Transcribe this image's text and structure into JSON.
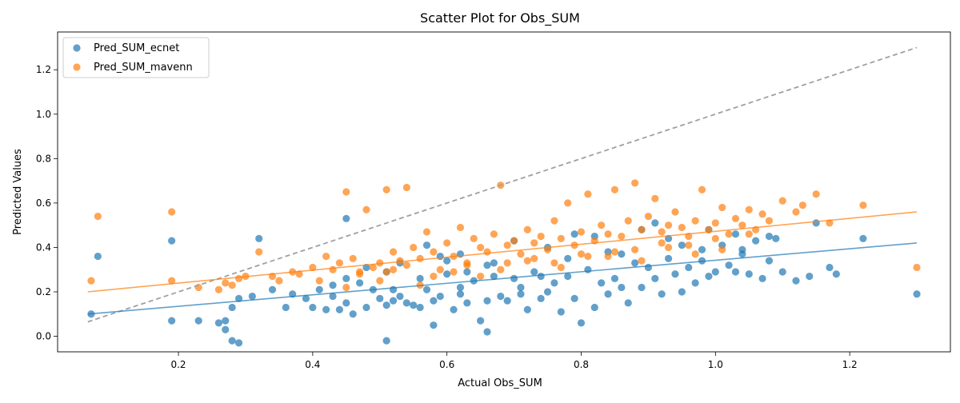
{
  "chart_data": {
    "type": "scatter",
    "title": "Scatter Plot for Obs_SUM",
    "xlabel": "Actual Obs_SUM",
    "ylabel": "Predicted Values",
    "xlim": [
      0.02,
      1.35
    ],
    "ylim": [
      -0.07,
      1.37
    ],
    "xticks": [
      0.2,
      0.4,
      0.6,
      0.8,
      1.0,
      1.2
    ],
    "yticks": [
      0.0,
      0.2,
      0.4,
      0.6,
      0.8,
      1.0,
      1.2
    ],
    "legend_position": "top-left",
    "series": [
      {
        "name": "Pred_SUM_ecnet",
        "color": "#1f77b4",
        "trend": {
          "x": [
            0.065,
            1.3
          ],
          "y": [
            0.1,
            0.42
          ]
        },
        "x": [
          0.07,
          0.08,
          0.19,
          0.19,
          0.23,
          0.26,
          0.27,
          0.27,
          0.28,
          0.28,
          0.29,
          0.29,
          0.31,
          0.32,
          0.34,
          0.36,
          0.37,
          0.39,
          0.4,
          0.41,
          0.42,
          0.43,
          0.44,
          0.45,
          0.45,
          0.46,
          0.47,
          0.48,
          0.49,
          0.5,
          0.51,
          0.51,
          0.52,
          0.53,
          0.54,
          0.55,
          0.56,
          0.57,
          0.58,
          0.58,
          0.59,
          0.6,
          0.61,
          0.62,
          0.62,
          0.63,
          0.64,
          0.65,
          0.66,
          0.66,
          0.67,
          0.68,
          0.69,
          0.7,
          0.71,
          0.72,
          0.73,
          0.74,
          0.75,
          0.76,
          0.77,
          0.78,
          0.79,
          0.8,
          0.81,
          0.82,
          0.83,
          0.84,
          0.85,
          0.86,
          0.87,
          0.88,
          0.89,
          0.9,
          0.91,
          0.92,
          0.93,
          0.94,
          0.95,
          0.96,
          0.97,
          0.98,
          0.99,
          1.0,
          1.01,
          1.02,
          1.03,
          1.04,
          1.05,
          1.06,
          1.07,
          1.08,
          1.09,
          1.1,
          1.12,
          1.14,
          1.15,
          1.17,
          1.18,
          1.22,
          1.3,
          0.45,
          0.51,
          0.53,
          0.57,
          0.6,
          0.62,
          0.66,
          0.7,
          0.74,
          0.79,
          0.84,
          0.89,
          0.93,
          0.98,
          1.03,
          0.43,
          0.48,
          0.52,
          0.56,
          0.59,
          0.63,
          0.67,
          0.71,
          0.75,
          0.78,
          0.82,
          0.86,
          0.91,
          0.95,
          0.99,
          1.04,
          1.08
        ],
        "y": [
          0.1,
          0.36,
          0.43,
          0.07,
          0.07,
          0.06,
          0.07,
          0.03,
          0.13,
          -0.02,
          0.17,
          -0.03,
          0.18,
          0.44,
          0.21,
          0.13,
          0.19,
          0.17,
          0.13,
          0.21,
          0.12,
          0.18,
          0.12,
          0.15,
          0.53,
          0.1,
          0.24,
          0.13,
          0.21,
          0.17,
          0.14,
          -0.02,
          0.16,
          0.18,
          0.15,
          0.14,
          0.13,
          0.21,
          0.05,
          0.16,
          0.18,
          0.28,
          0.12,
          0.19,
          0.22,
          0.15,
          0.25,
          0.07,
          0.16,
          0.02,
          0.27,
          0.18,
          0.16,
          0.26,
          0.19,
          0.12,
          0.29,
          0.17,
          0.2,
          0.24,
          0.11,
          0.27,
          0.17,
          0.06,
          0.3,
          0.13,
          0.24,
          0.19,
          0.26,
          0.22,
          0.15,
          0.33,
          0.22,
          0.31,
          0.26,
          0.19,
          0.35,
          0.28,
          0.2,
          0.31,
          0.24,
          0.34,
          0.27,
          0.29,
          0.41,
          0.32,
          0.29,
          0.37,
          0.28,
          0.43,
          0.26,
          0.34,
          0.44,
          0.29,
          0.25,
          0.27,
          0.51,
          0.31,
          0.28,
          0.44,
          0.19,
          0.26,
          0.29,
          0.33,
          0.41,
          0.34,
          0.37,
          0.32,
          0.43,
          0.27,
          0.46,
          0.38,
          0.48,
          0.44,
          0.39,
          0.46,
          0.23,
          0.31,
          0.21,
          0.26,
          0.36,
          0.29,
          0.33,
          0.22,
          0.4,
          0.35,
          0.45,
          0.37,
          0.51,
          0.41,
          0.48,
          0.39,
          0.45
        ]
      },
      {
        "name": "Pred_SUM_mavenn",
        "color": "#ff7f0e",
        "trend": {
          "x": [
            0.065,
            1.3
          ],
          "y": [
            0.2,
            0.56
          ]
        },
        "x": [
          0.07,
          0.08,
          0.19,
          0.19,
          0.23,
          0.26,
          0.27,
          0.28,
          0.29,
          0.3,
          0.32,
          0.34,
          0.35,
          0.37,
          0.38,
          0.4,
          0.41,
          0.42,
          0.43,
          0.44,
          0.45,
          0.45,
          0.46,
          0.47,
          0.48,
          0.49,
          0.5,
          0.51,
          0.51,
          0.52,
          0.53,
          0.54,
          0.54,
          0.55,
          0.56,
          0.57,
          0.58,
          0.59,
          0.6,
          0.61,
          0.62,
          0.63,
          0.64,
          0.65,
          0.66,
          0.67,
          0.68,
          0.69,
          0.7,
          0.71,
          0.72,
          0.73,
          0.74,
          0.75,
          0.76,
          0.77,
          0.78,
          0.79,
          0.8,
          0.81,
          0.82,
          0.83,
          0.84,
          0.85,
          0.86,
          0.87,
          0.88,
          0.89,
          0.9,
          0.91,
          0.92,
          0.93,
          0.94,
          0.95,
          0.96,
          0.97,
          0.98,
          0.99,
          1.0,
          1.01,
          1.02,
          1.03,
          1.04,
          1.05,
          1.06,
          1.07,
          1.08,
          1.1,
          1.12,
          1.13,
          1.15,
          1.17,
          1.22,
          1.3,
          0.5,
          0.56,
          0.61,
          0.65,
          0.69,
          0.73,
          0.77,
          0.81,
          0.85,
          0.89,
          0.93,
          0.97,
          1.01,
          0.47,
          0.52,
          0.58,
          0.63,
          0.68,
          0.72,
          0.76,
          0.8,
          0.84,
          0.88,
          0.92,
          0.96,
          1.0,
          1.05
        ],
        "y": [
          0.25,
          0.54,
          0.56,
          0.25,
          0.22,
          0.21,
          0.24,
          0.23,
          0.26,
          0.27,
          0.38,
          0.27,
          0.25,
          0.29,
          0.28,
          0.31,
          0.25,
          0.36,
          0.3,
          0.33,
          0.65,
          0.22,
          0.35,
          0.29,
          0.57,
          0.31,
          0.33,
          0.66,
          0.29,
          0.38,
          0.34,
          0.67,
          0.32,
          0.4,
          0.35,
          0.47,
          0.38,
          0.3,
          0.42,
          0.36,
          0.49,
          0.33,
          0.44,
          0.4,
          0.38,
          0.46,
          0.68,
          0.41,
          0.43,
          0.37,
          0.48,
          0.42,
          0.45,
          0.39,
          0.52,
          0.44,
          0.6,
          0.41,
          0.47,
          0.64,
          0.43,
          0.5,
          0.46,
          0.66,
          0.45,
          0.52,
          0.69,
          0.48,
          0.54,
          0.62,
          0.47,
          0.5,
          0.56,
          0.49,
          0.45,
          0.52,
          0.66,
          0.48,
          0.51,
          0.58,
          0.46,
          0.53,
          0.5,
          0.57,
          0.48,
          0.55,
          0.52,
          0.61,
          0.56,
          0.59,
          0.64,
          0.51,
          0.59,
          0.31,
          0.25,
          0.23,
          0.29,
          0.27,
          0.33,
          0.35,
          0.31,
          0.36,
          0.38,
          0.34,
          0.4,
          0.37,
          0.39,
          0.28,
          0.3,
          0.27,
          0.32,
          0.3,
          0.34,
          0.33,
          0.37,
          0.36,
          0.39,
          0.42,
          0.41,
          0.44,
          0.46
        ]
      }
    ],
    "reference_line": {
      "x": [
        0.065,
        1.3
      ],
      "y": [
        0.065,
        1.3
      ],
      "style": "dashed",
      "color": "#a0a0a0"
    }
  }
}
